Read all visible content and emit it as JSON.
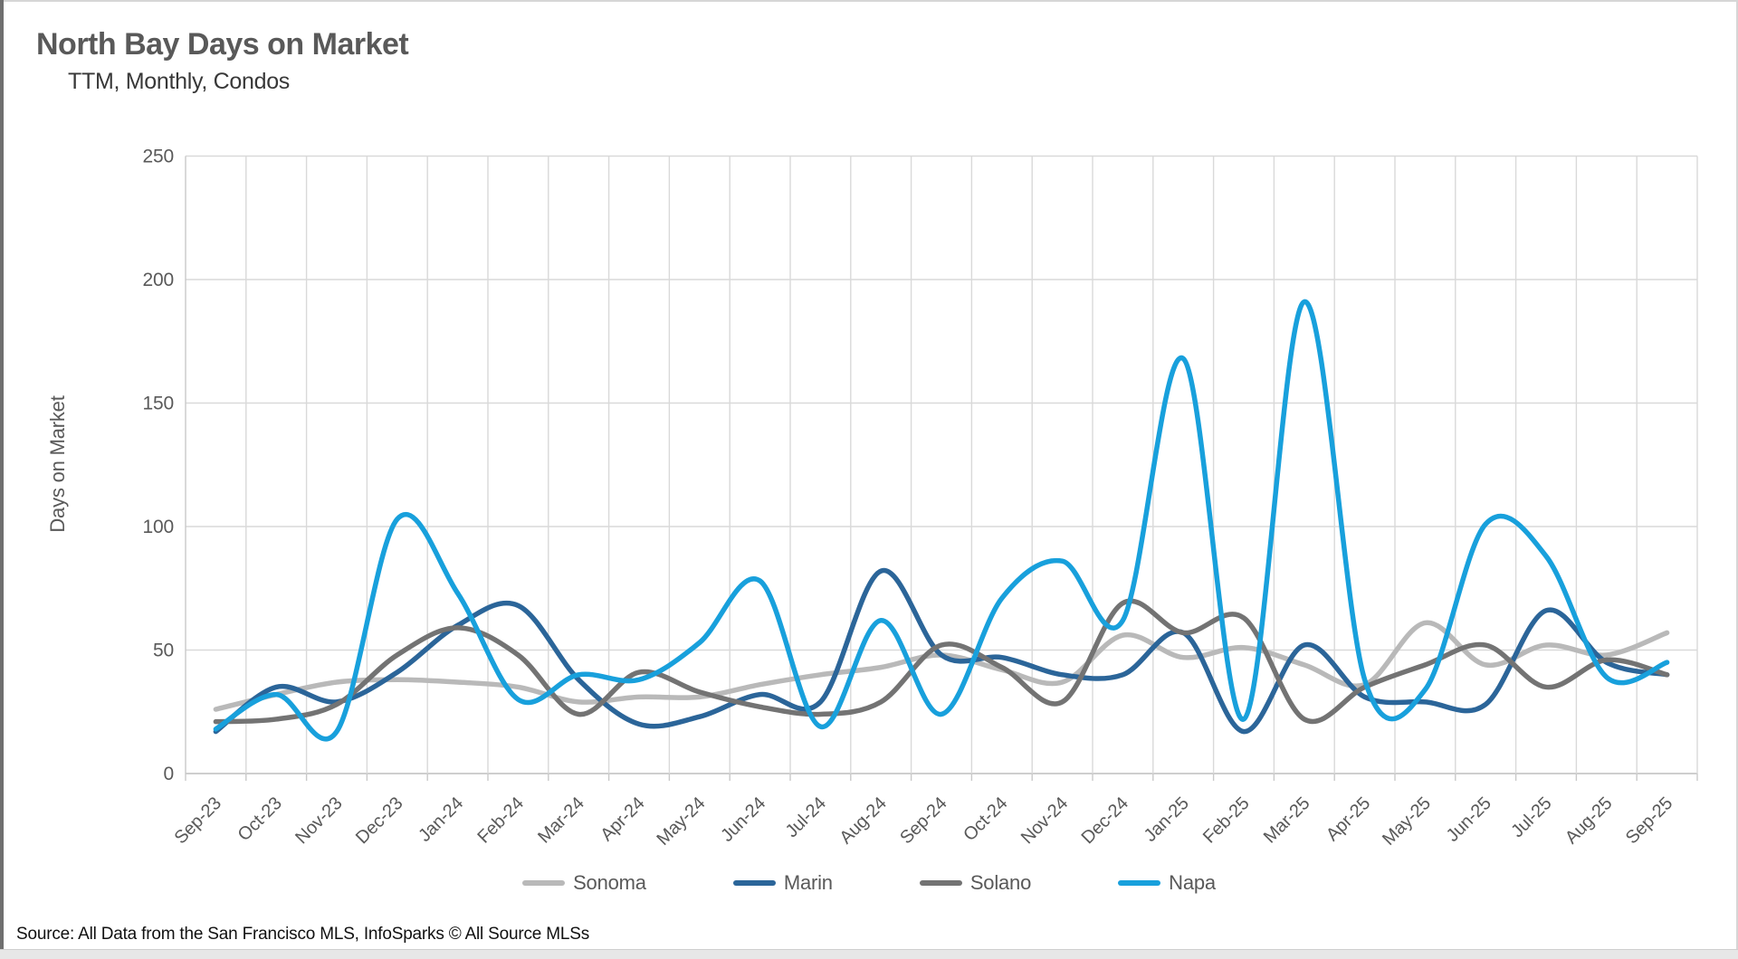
{
  "card": {
    "title": "North Bay Days on Market",
    "subtitle": "TTM, Monthly, Condos",
    "source": "Source: All Data from the San Francisco MLS, InfoSparks © All Source MLSs"
  },
  "chart_data": {
    "type": "line",
    "title": "North Bay Days on Market",
    "subtitle": "TTM, Monthly, Condos",
    "xlabel": "",
    "ylabel": "Days on Market",
    "ylim": [
      0,
      250
    ],
    "yticks": [
      0,
      50,
      100,
      150,
      200,
      250
    ],
    "grid": true,
    "smooth": true,
    "legend_position": "bottom",
    "grid_color": "#d9d9d9",
    "axis_line_color": "#bdbdbd",
    "tick_stub_color": "#c9c9c9",
    "axis_text_color": "#595959",
    "categories": [
      "Sep-23",
      "Oct-23",
      "Nov-23",
      "Dec-23",
      "Jan-24",
      "Feb-24",
      "Mar-24",
      "Apr-24",
      "May-24",
      "Jun-24",
      "Jul-24",
      "Aug-24",
      "Sep-24",
      "Oct-24",
      "Nov-24",
      "Dec-24",
      "Jan-25",
      "Feb-25",
      "Mar-25",
      "Apr-25",
      "May-25",
      "Jun-25",
      "Jul-25",
      "Aug-25",
      "Sep-25"
    ],
    "series": [
      {
        "name": "Sonoma",
        "color": "#b9b9b9",
        "values": [
          26,
          32,
          37,
          38,
          37,
          35,
          29,
          31,
          31,
          36,
          40,
          43,
          48,
          42,
          37,
          56,
          47,
          51,
          44,
          36,
          61,
          44,
          52,
          48,
          57
        ]
      },
      {
        "name": "Marin",
        "color": "#2b6599",
        "values": [
          17,
          35,
          29,
          41,
          60,
          68,
          38,
          20,
          23,
          32,
          29,
          82,
          48,
          47,
          40,
          40,
          57,
          17,
          52,
          31,
          29,
          28,
          66,
          45,
          40
        ]
      },
      {
        "name": "Solano",
        "color": "#737373",
        "values": [
          21,
          22,
          28,
          48,
          59,
          48,
          24,
          41,
          33,
          27,
          24,
          29,
          52,
          43,
          29,
          69,
          57,
          63,
          22,
          35,
          44,
          52,
          35,
          46,
          40
        ]
      },
      {
        "name": "Napa",
        "color": "#18a0dc",
        "values": [
          18,
          32,
          17,
          103,
          73,
          30,
          40,
          38,
          53,
          78,
          19,
          62,
          24,
          71,
          86,
          62,
          168,
          22,
          191,
          38,
          34,
          101,
          88,
          39,
          45
        ]
      }
    ]
  }
}
